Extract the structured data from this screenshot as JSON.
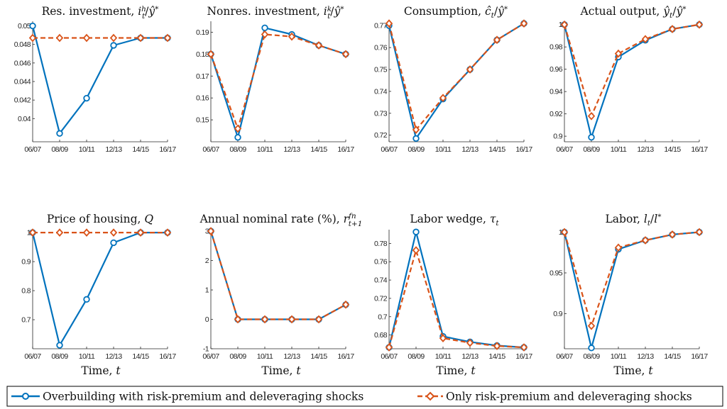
{
  "colors": {
    "series1": "#0072bd",
    "series2": "#d95319"
  },
  "legend": {
    "placement": "bottom",
    "items": [
      "Overbuilding with risk-premium and deleveraging shocks",
      "Only risk-premium and deleveraging shocks"
    ]
  },
  "chart_data": [
    {
      "type": "line",
      "title": "Res. investment, i_t^h/ŷ*",
      "xlabel": "",
      "categories": [
        "06/07",
        "08/09",
        "10/11",
        "12/13",
        "14/15",
        "16/17"
      ],
      "ylim": [
        0.0375,
        0.0505
      ],
      "yticks": [
        0.04,
        0.042,
        0.044,
        0.046,
        0.048,
        0.05
      ],
      "ytick_labels": [
        "0.04",
        "0.042",
        "0.044",
        "0.046",
        "0.048",
        "0.05"
      ],
      "series": [
        {
          "values": [
            0.05,
            0.0384,
            0.0422,
            0.0479,
            0.0487,
            0.0487
          ]
        },
        {
          "values": [
            0.0487,
            0.0487,
            0.0487,
            0.0487,
            0.0487,
            0.0487
          ]
        }
      ]
    },
    {
      "type": "line",
      "title": "Nonres. investment, i_t^k/ŷ*",
      "xlabel": "",
      "categories": [
        "06/07",
        "08/09",
        "10/11",
        "12/13",
        "14/15",
        "16/17"
      ],
      "ylim": [
        0.14,
        0.195
      ],
      "yticks": [
        0.15,
        0.16,
        0.17,
        0.18,
        0.19
      ],
      "ytick_labels": [
        "0.15",
        "0.16",
        "0.17",
        "0.18",
        "0.19"
      ],
      "series": [
        {
          "values": [
            0.18,
            0.142,
            0.192,
            0.189,
            0.184,
            0.18
          ]
        },
        {
          "values": [
            0.18,
            0.146,
            0.189,
            0.188,
            0.184,
            0.18
          ]
        }
      ]
    },
    {
      "type": "line",
      "title": "Consumption, ĉ_t/ŷ*",
      "xlabel": "",
      "categories": [
        "06/07",
        "08/09",
        "10/11",
        "12/13",
        "14/15",
        "16/17"
      ],
      "ylim": [
        0.717,
        0.772
      ],
      "yticks": [
        0.72,
        0.73,
        0.74,
        0.75,
        0.76,
        0.77
      ],
      "ytick_labels": [
        "0.72",
        "0.73",
        "0.74",
        "0.75",
        "0.76",
        "0.77"
      ],
      "series": [
        {
          "values": [
            0.77,
            0.7185,
            0.7365,
            0.75,
            0.7635,
            0.771
          ]
        },
        {
          "values": [
            0.771,
            0.7225,
            0.737,
            0.75,
            0.7635,
            0.771
          ]
        }
      ]
    },
    {
      "type": "line",
      "title": "Actual output, ŷ_t/ŷ*",
      "xlabel": "",
      "categories": [
        "06/07",
        "08/09",
        "10/11",
        "12/13",
        "14/15",
        "16/17"
      ],
      "ylim": [
        0.895,
        1.003
      ],
      "yticks": [
        0.9,
        0.92,
        0.94,
        0.96,
        0.98,
        1.0
      ],
      "ytick_labels": [
        "0.9",
        "0.92",
        "0.94",
        "0.96",
        "0.98",
        "1"
      ],
      "series": [
        {
          "values": [
            1.0,
            0.899,
            0.971,
            0.986,
            0.996,
            1.0
          ]
        },
        {
          "values": [
            1.0,
            0.918,
            0.974,
            0.987,
            0.996,
            1.0
          ]
        }
      ]
    },
    {
      "type": "line",
      "title": "Price of housing, Q",
      "xlabel": "Time, t",
      "categories": [
        "06/07",
        "08/09",
        "10/11",
        "12/13",
        "14/15",
        "16/17"
      ],
      "ylim": [
        0.6,
        1.01
      ],
      "yticks": [
        0.7,
        0.8,
        0.9,
        1.0
      ],
      "ytick_labels": [
        "0.7",
        "0.8",
        "0.9",
        "1"
      ],
      "series": [
        {
          "values": [
            1.0,
            0.612,
            0.77,
            0.965,
            1.0,
            1.0
          ]
        },
        {
          "values": [
            1.0,
            1.0,
            1.0,
            1.0,
            1.0,
            1.0
          ]
        }
      ]
    },
    {
      "type": "line",
      "title": "Annual nominal rate (%), r_{t+1}^{fn}",
      "xlabel": "Time, t",
      "categories": [
        "06/07",
        "08/09",
        "10/11",
        "12/13",
        "14/15",
        "16/17"
      ],
      "ylim": [
        -1,
        3.05
      ],
      "yticks": [
        -1,
        0,
        1,
        2,
        3
      ],
      "ytick_labels": [
        "-1",
        "0",
        "1",
        "2",
        "3"
      ],
      "series": [
        {
          "values": [
            3.0,
            0.0,
            0.0,
            0.0,
            0.0,
            0.5
          ]
        },
        {
          "values": [
            3.0,
            0.0,
            0.0,
            0.0,
            0.0,
            0.5
          ]
        }
      ]
    },
    {
      "type": "line",
      "title": "Labor wedge, τ_t",
      "xlabel": "Time, t",
      "categories": [
        "06/07",
        "08/09",
        "10/11",
        "12/13",
        "14/15",
        "16/17"
      ],
      "ylim": [
        0.665,
        0.795
      ],
      "yticks": [
        0.68,
        0.7,
        0.72,
        0.74,
        0.76,
        0.78
      ],
      "ytick_labels": [
        "0.68",
        "0.7",
        "0.72",
        "0.74",
        "0.76",
        "0.78"
      ],
      "series": [
        {
          "values": [
            0.6665,
            0.7925,
            0.6785,
            0.6725,
            0.6685,
            0.6665
          ]
        },
        {
          "values": [
            0.6665,
            0.7725,
            0.6765,
            0.6715,
            0.668,
            0.6665
          ]
        }
      ]
    },
    {
      "type": "line",
      "title": "Labor, l_t/l*",
      "xlabel": "Time, t",
      "categories": [
        "06/07",
        "08/09",
        "10/11",
        "12/13",
        "14/15",
        "16/17"
      ],
      "ylim": [
        0.857,
        1.003
      ],
      "yticks": [
        0.9,
        0.95,
        1.0
      ],
      "ytick_labels": [
        "0.9",
        "0.95",
        "1"
      ],
      "series": [
        {
          "values": [
            1.0,
            0.858,
            0.979,
            0.99,
            0.997,
            1.0
          ]
        },
        {
          "values": [
            1.0,
            0.885,
            0.981,
            0.99,
            0.997,
            1.0
          ]
        }
      ]
    }
  ]
}
